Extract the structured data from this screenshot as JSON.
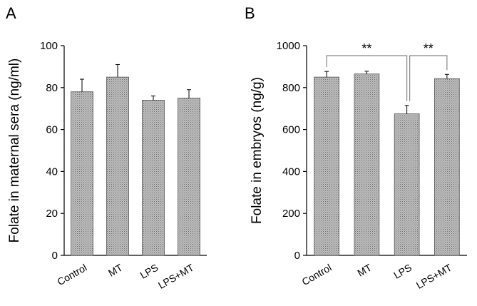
{
  "chart_data": [
    {
      "type": "bar",
      "panel_label": "A",
      "title": "",
      "xlabel": "",
      "ylabel": "Folate in maternal sera (ng/ml)",
      "categories": [
        "Control",
        "MT",
        "LPS",
        "LPS+MT"
      ],
      "values": [
        78,
        85,
        74,
        75
      ],
      "errors": [
        6,
        6,
        2,
        4
      ],
      "ylim": [
        0,
        100
      ],
      "yticks": [
        0,
        20,
        40,
        60,
        80,
        100
      ],
      "grid": false,
      "bar_color": "#a9a9a9",
      "significance": []
    },
    {
      "type": "bar",
      "panel_label": "B",
      "title": "",
      "xlabel": "",
      "ylabel": "Folate in embryos (ng/g)",
      "categories": [
        "Control",
        "MT",
        "LPS",
        "LPS+MT"
      ],
      "values": [
        850,
        865,
        675,
        843
      ],
      "errors": [
        27,
        13,
        40,
        20
      ],
      "ylim": [
        0,
        1000
      ],
      "yticks": [
        0,
        200,
        400,
        600,
        800,
        1000
      ],
      "grid": false,
      "bar_color": "#a9a9a9",
      "significance": [
        {
          "from": 0,
          "to": 2,
          "label": "**"
        },
        {
          "from": 2,
          "to": 3,
          "label": "**"
        }
      ]
    }
  ]
}
